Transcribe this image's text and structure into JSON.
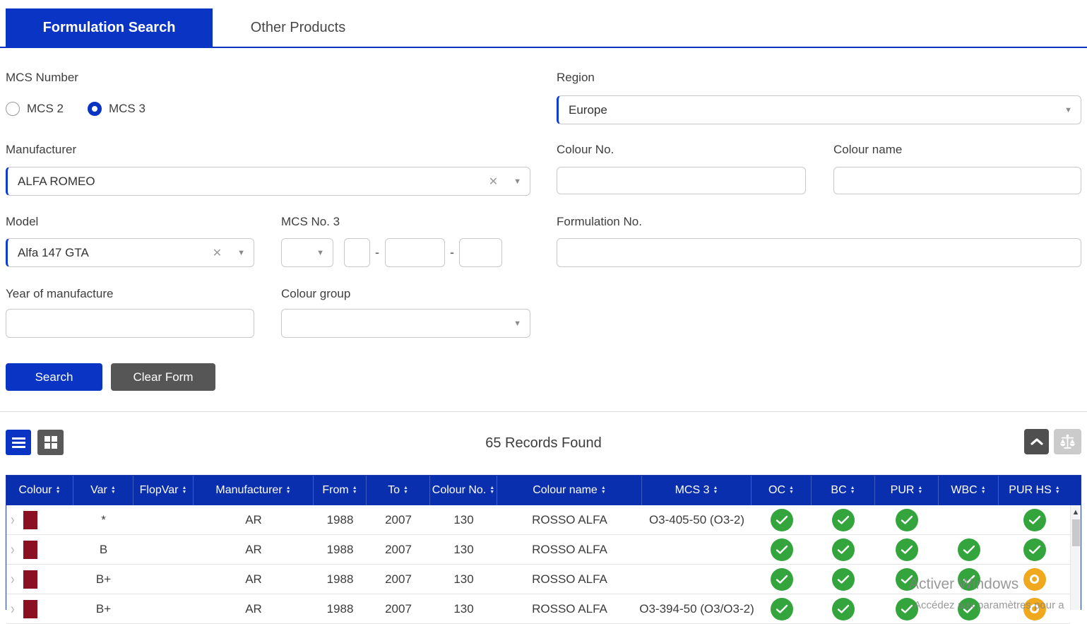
{
  "tabs": [
    {
      "label": "Formulation Search",
      "active": true
    },
    {
      "label": "Other Products",
      "active": false
    }
  ],
  "form": {
    "mcs_number": {
      "label": "MCS Number",
      "options": [
        {
          "label": "MCS 2",
          "selected": false
        },
        {
          "label": "MCS 3",
          "selected": true
        }
      ]
    },
    "region": {
      "label": "Region",
      "value": "Europe"
    },
    "manufacturer": {
      "label": "Manufacturer",
      "value": "ALFA ROMEO"
    },
    "colour_no": {
      "label": "Colour No.",
      "value": ""
    },
    "colour_name": {
      "label": "Colour name",
      "value": ""
    },
    "model": {
      "label": "Model",
      "value": "Alfa 147 GTA"
    },
    "mcs_no_3": {
      "label": "MCS No. 3",
      "separator": "-",
      "dropdown_value": "",
      "segments": [
        "",
        "",
        ""
      ]
    },
    "formulation_no": {
      "label": "Formulation No.",
      "value": ""
    },
    "year_of_manufacture": {
      "label": "Year of manufacture",
      "value": ""
    },
    "colour_group": {
      "label": "Colour group",
      "value": ""
    },
    "search_label": "Search",
    "clear_label": "Clear Form"
  },
  "results": {
    "count_text": "65 Records Found",
    "table": {
      "columns": [
        "Colour",
        "Var",
        "FlopVar",
        "Manufacturer",
        "From",
        "To",
        "Colour No.",
        "Colour name",
        "MCS 3",
        "OC",
        "BC",
        "PUR",
        "WBC",
        "PUR HS"
      ],
      "rows": [
        {
          "swatch": "#8b1021",
          "var": "*",
          "flopvar": "",
          "manufacturer": "AR",
          "from": "1988",
          "to": "2007",
          "colour_no": "130",
          "colour_name": "ROSSO ALFA",
          "mcs3": "O3-405-50 (O3-2)",
          "oc": "check",
          "bc": "check",
          "pur": "check",
          "wbc": "",
          "pur_hs": "check"
        },
        {
          "swatch": "#8b1021",
          "var": "B",
          "flopvar": "",
          "manufacturer": "AR",
          "from": "1988",
          "to": "2007",
          "colour_no": "130",
          "colour_name": "ROSSO ALFA",
          "mcs3": "",
          "oc": "check",
          "bc": "check",
          "pur": "check",
          "wbc": "check",
          "pur_hs": "check"
        },
        {
          "swatch": "#8b1021",
          "var": "B+",
          "flopvar": "",
          "manufacturer": "AR",
          "from": "1988",
          "to": "2007",
          "colour_no": "130",
          "colour_name": "ROSSO ALFA",
          "mcs3": "",
          "oc": "check",
          "bc": "check",
          "pur": "check",
          "wbc": "check",
          "pur_hs": "pending"
        },
        {
          "swatch": "#8b1021",
          "var": "B+",
          "flopvar": "",
          "manufacturer": "AR",
          "from": "1988",
          "to": "2007",
          "colour_no": "130",
          "colour_name": "ROSSO ALFA",
          "mcs3": "O3-394-50 (O3/O3-2)",
          "oc": "check",
          "bc": "check",
          "pur": "check",
          "wbc": "check",
          "pur_hs": "pending"
        }
      ]
    }
  },
  "watermark": {
    "line1": "Activer Windows",
    "line2": "Accédez aux paramètres pour a"
  },
  "colors": {
    "accent_blue": "#0a34c4",
    "table_header_blue": "#0a2fae",
    "status_green": "#33a53c",
    "status_orange": "#f0a81c",
    "swatch_maroon": "#8b1021",
    "dark_button_gray": "#565656"
  }
}
